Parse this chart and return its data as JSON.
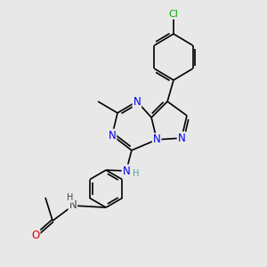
{
  "background_color": "#e8e8e8",
  "bond_color": "#000000",
  "atom_colors": {
    "N": "#0000ee",
    "O": "#dd0000",
    "Cl": "#00aa00",
    "C": "#000000",
    "H": "#444444"
  },
  "font_size_N": 8.5,
  "font_size_O": 8.5,
  "font_size_Cl": 8.0,
  "font_size_H": 7.0,
  "font_size_label": 7.5,
  "line_width": 1.2
}
